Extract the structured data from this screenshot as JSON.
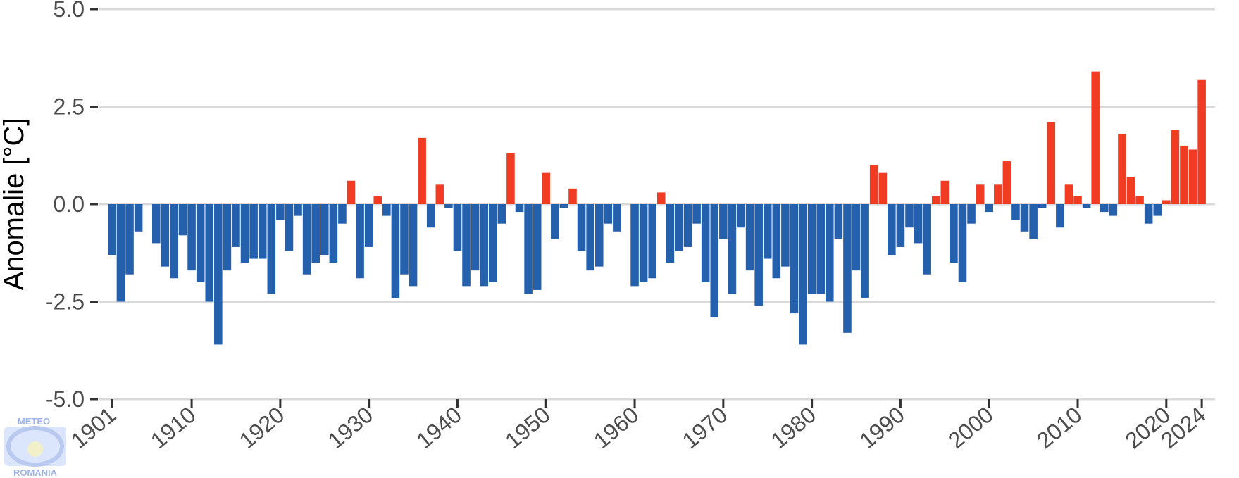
{
  "chart_data": {
    "type": "bar",
    "ylabel": "Anomalie [°C]",
    "ylim": [
      -5.6,
      5.0
    ],
    "yticks": [
      5.0,
      2.5,
      0.0,
      -2.5,
      -5.0
    ],
    "ytick_labels": [
      "5.0",
      "2.5",
      "0.0",
      "-2.5",
      "-5.0"
    ],
    "xlim": [
      1899.5,
      2025.5
    ],
    "xticks": [
      1901,
      1910,
      1920,
      1930,
      1940,
      1950,
      1960,
      1970,
      1980,
      1990,
      2000,
      2010,
      2020,
      2024
    ],
    "xtick_labels": [
      "1901",
      "1910",
      "1920",
      "1930",
      "1940",
      "1950",
      "1960",
      "1970",
      "1980",
      "1990",
      "2000",
      "2010",
      "2020",
      "2024"
    ],
    "grid": true,
    "colors": {
      "positive": "#f03c23",
      "negative": "#2460ac",
      "grid": "#d9d9d9",
      "tick": "#333333"
    },
    "x_start": 1901,
    "values": [
      -1.3,
      -2.5,
      -1.8,
      -0.7,
      0,
      -1.0,
      -1.6,
      -1.9,
      -0.8,
      -1.7,
      -2.0,
      -2.5,
      -3.6,
      -1.7,
      -1.1,
      -1.5,
      -1.4,
      -1.4,
      -2.3,
      -0.4,
      -1.2,
      -0.3,
      -1.8,
      -1.5,
      -1.3,
      -1.5,
      -0.5,
      0.6,
      -1.9,
      -1.1,
      0.2,
      -0.3,
      -2.4,
      -1.8,
      -2.1,
      1.7,
      -0.6,
      0.5,
      -0.1,
      -1.2,
      -2.1,
      -1.7,
      -2.1,
      -2.0,
      -0.5,
      1.3,
      -0.2,
      -2.3,
      -2.2,
      0.8,
      -0.9,
      -0.1,
      0.4,
      -1.2,
      -1.7,
      -1.6,
      -0.5,
      -0.7,
      0,
      -2.1,
      -2.0,
      -1.9,
      0.3,
      -1.5,
      -1.2,
      -1.1,
      -0.5,
      -2.0,
      -2.9,
      -0.9,
      -2.3,
      -0.6,
      -1.7,
      -2.6,
      -1.4,
      -1.9,
      -1.6,
      -2.8,
      -3.6,
      -2.3,
      -2.3,
      -2.5,
      -0.9,
      -3.3,
      -1.7,
      -2.4,
      1.0,
      0.8,
      -1.3,
      -1.1,
      -0.6,
      -1.0,
      -1.8,
      0.2,
      0.6,
      -1.5,
      -2.0,
      -0.5,
      0.5,
      -0.2,
      0.5,
      1.1,
      -0.4,
      -0.7,
      -0.9,
      -0.1,
      2.1,
      -0.6,
      0.5,
      0.2,
      -0.1,
      3.4,
      -0.2,
      -0.3,
      1.8,
      0.7,
      0.2,
      -0.5,
      -0.3,
      0.1,
      1.9,
      1.5,
      1.4,
      3.2
    ]
  },
  "logo": {
    "line1": "METEO",
    "line2": "ROMANIA"
  }
}
